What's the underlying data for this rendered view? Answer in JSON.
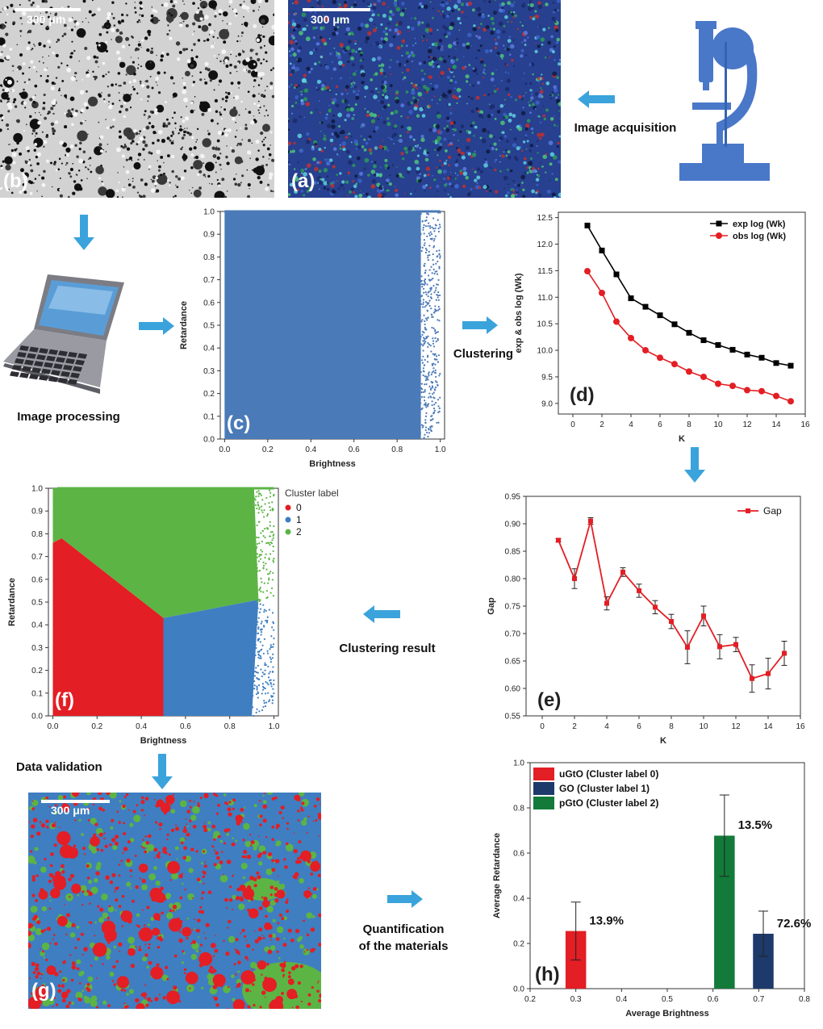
{
  "panels": {
    "a": {
      "letter": "(a)",
      "scale": "300 μm"
    },
    "b": {
      "letter": "(b)",
      "scale": "300 μm"
    },
    "c": {
      "letter": "(c)"
    },
    "d": {
      "letter": "(d)"
    },
    "e": {
      "letter": "(e)"
    },
    "f": {
      "letter": "(f)"
    },
    "g": {
      "letter": "(g)",
      "scale": "300 μm"
    },
    "h": {
      "letter": "(h)"
    }
  },
  "labels": {
    "image_acquisition": "Image acquisition",
    "image_processing": "Image processing",
    "clustering": "Clustering",
    "clustering_result": "Clustering result",
    "data_validation": "Data validation",
    "quantification_line1": "Quantification",
    "quantification_line2": "of the materials"
  },
  "colors": {
    "arrow": "#3aa3dc",
    "scatter_blue": "#4a7ab8",
    "cluster0": "#e31e24",
    "cluster1": "#3f7ec1",
    "cluster2": "#5cb445",
    "exp_line": "#000000",
    "obs_line": "#e31e24",
    "bar_ugto": "#e31e24",
    "bar_go": "#1d3a6b",
    "bar_pgto": "#137a3a"
  },
  "icons": [
    "microscope-icon",
    "laptop-icon",
    "arrow-icon"
  ],
  "chart_data": [
    {
      "id": "c",
      "type": "scatter",
      "xlabel": "Brightness",
      "ylabel": "Retardance",
      "xlim": [
        -0.02,
        1.02
      ],
      "ylim": [
        0,
        1.0
      ],
      "xticks": [
        "0.0",
        "0.2",
        "0.4",
        "0.6",
        "0.8",
        "1.0"
      ],
      "yticks": [
        "0.0",
        "0.1",
        "0.2",
        "0.3",
        "0.4",
        "0.5",
        "0.6",
        "0.7",
        "0.8",
        "0.9",
        "1.0"
      ]
    },
    {
      "id": "d",
      "type": "line",
      "xlabel": "K",
      "ylabel": "exp & obs log (Wk)",
      "xlim": [
        -1,
        16
      ],
      "ylim": [
        8.8,
        12.6
      ],
      "xticks": [
        "0",
        "2",
        "4",
        "6",
        "8",
        "10",
        "12",
        "14",
        "16"
      ],
      "yticks": [
        "9.0",
        "9.5",
        "10.0",
        "10.5",
        "11.0",
        "11.5",
        "12.0",
        "12.5"
      ],
      "x": [
        1,
        2,
        3,
        4,
        5,
        6,
        7,
        8,
        9,
        10,
        11,
        12,
        13,
        14,
        15
      ],
      "series": [
        {
          "name": "exp log (Wk)",
          "values": [
            12.35,
            11.88,
            11.43,
            10.98,
            10.82,
            10.66,
            10.49,
            10.33,
            10.19,
            10.1,
            10.01,
            9.92,
            9.86,
            9.76,
            9.71
          ]
        },
        {
          "name": "obs log (Wk)",
          "values": [
            11.49,
            11.08,
            10.54,
            10.23,
            10.0,
            9.86,
            9.74,
            9.6,
            9.5,
            9.37,
            9.33,
            9.25,
            9.23,
            9.14,
            9.04
          ]
        }
      ],
      "legend": "top-right"
    },
    {
      "id": "e",
      "type": "line",
      "xlabel": "K",
      "ylabel": "Gap",
      "xlim": [
        -1,
        16
      ],
      "ylim": [
        0.55,
        0.95
      ],
      "xticks": [
        "0",
        "2",
        "4",
        "6",
        "8",
        "10",
        "12",
        "14",
        "16"
      ],
      "yticks": [
        "0.55",
        "0.60",
        "0.65",
        "0.70",
        "0.75",
        "0.80",
        "0.85",
        "0.90",
        "0.95"
      ],
      "x": [
        1,
        2,
        3,
        4,
        5,
        6,
        7,
        8,
        9,
        10,
        11,
        12,
        13,
        14,
        15
      ],
      "series": [
        {
          "name": "Gap",
          "values": [
            0.87,
            0.8,
            0.905,
            0.755,
            0.812,
            0.778,
            0.748,
            0.722,
            0.675,
            0.732,
            0.676,
            0.68,
            0.618,
            0.627,
            0.664
          ],
          "errors": [
            0.003,
            0.018,
            0.006,
            0.012,
            0.008,
            0.012,
            0.012,
            0.013,
            0.03,
            0.018,
            0.022,
            0.013,
            0.025,
            0.028,
            0.022
          ]
        }
      ],
      "legend": "top-right"
    },
    {
      "id": "f",
      "type": "scatter",
      "xlabel": "Brightness",
      "ylabel": "Retardance",
      "xlim": [
        -0.02,
        1.02
      ],
      "ylim": [
        0,
        1.0
      ],
      "xticks": [
        "0.0",
        "0.2",
        "0.4",
        "0.6",
        "0.8",
        "1.0"
      ],
      "yticks": [
        "0.0",
        "0.1",
        "0.2",
        "0.3",
        "0.4",
        "0.5",
        "0.6",
        "0.7",
        "0.8",
        "0.9",
        "1.0"
      ],
      "legend_title": "Cluster label",
      "legend": [
        "0",
        "1",
        "2"
      ]
    },
    {
      "id": "h",
      "type": "bar",
      "xlabel": "Average Brightness",
      "ylabel": "Average Retardance",
      "xlim": [
        0.2,
        0.8
      ],
      "ylim": [
        0,
        1.0
      ],
      "xticks": [
        "0.2",
        "0.3",
        "0.4",
        "0.5",
        "0.6",
        "0.7",
        "0.8"
      ],
      "yticks": [
        "0.0",
        "0.2",
        "0.4",
        "0.6",
        "0.8",
        "1.0"
      ],
      "bars": [
        {
          "name": "uGtO (Cluster label 0)",
          "x": 0.3,
          "value": 0.255,
          "error": 0.128,
          "label": "13.9%",
          "color": "#e31e24"
        },
        {
          "name": "GO (Cluster label 1)",
          "x": 0.71,
          "value": 0.243,
          "error": 0.1,
          "label": "72.6%",
          "color": "#1d3a6b"
        },
        {
          "name": "pGtO (Cluster label 2)",
          "x": 0.625,
          "value": 0.677,
          "error": 0.18,
          "label": "13.5%",
          "color": "#137a3a"
        }
      ],
      "legend": "top-left"
    }
  ]
}
